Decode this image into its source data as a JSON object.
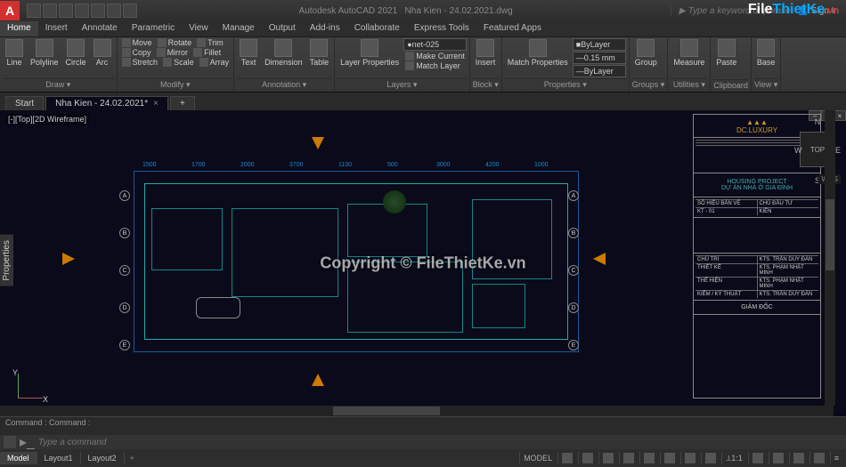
{
  "app": {
    "name": "Autodesk AutoCAD 2021",
    "file": "Nha Kien - 24.02.2021.dwg",
    "search_hint": "Type a keyword or phrase",
    "signin": "Sign In"
  },
  "watermark_site": {
    "a": "File",
    "b": "ThietKe",
    "c": ".vn"
  },
  "center_watermark": "Copyright © FileThietKe.vn",
  "tabs": [
    "Home",
    "Insert",
    "Annotate",
    "Parametric",
    "View",
    "Manage",
    "Output",
    "Add-ins",
    "Collaborate",
    "Express Tools",
    "Featured Apps"
  ],
  "active_tab": 0,
  "ribbon": {
    "draw": {
      "title": "Draw ▾",
      "items": [
        "Line",
        "Polyline",
        "Circle",
        "Arc"
      ]
    },
    "modify": {
      "title": "Modify ▾",
      "rows": [
        [
          "Move",
          "Rotate",
          "Trim"
        ],
        [
          "Copy",
          "Mirror",
          "Fillet"
        ],
        [
          "Stretch",
          "Scale",
          "Array"
        ]
      ]
    },
    "annot": {
      "title": "Annotation ▾",
      "items": [
        "Text",
        "Dimension",
        "Table"
      ]
    },
    "layers": {
      "title": "Layers ▾",
      "big": "Layer Properties",
      "combo": "net-025",
      "btns": [
        "Make Current",
        "Match Layer"
      ]
    },
    "block": {
      "title": "Block ▾",
      "items": [
        "Insert"
      ]
    },
    "props": {
      "title": "Properties ▾",
      "big": "Match Properties",
      "combo1": "ByLayer",
      "combo2": "0.15 mm",
      "combo3": "ByLayer"
    },
    "groups": {
      "title": "Groups ▾",
      "item": "Group"
    },
    "utils": {
      "title": "Utilities ▾",
      "item": "Measure"
    },
    "clip": {
      "title": "Clipboard",
      "item": "Paste"
    },
    "view": {
      "title": "View ▾",
      "item": "Base"
    }
  },
  "filetabs": [
    {
      "label": "Start",
      "active": false
    },
    {
      "label": "Nha Kien - 24.02.2021*",
      "active": true
    }
  ],
  "viewport_label": "[-][Top][2D Wireframe]",
  "properties_panel": "Properties",
  "navcube": {
    "face": "TOP",
    "n": "N",
    "s": "S",
    "e": "E",
    "w": "W",
    "wcs": "WCS"
  },
  "ucs": {
    "x": "X",
    "y": "Y"
  },
  "titleblock": {
    "brand": "DC.LUXURY",
    "project1": "HOUSING PROJECT",
    "project2": "DỰ ÁN NHÀ Ở GIA ĐÌNH",
    "code_label": "SỐ HIỆU BẢN VẼ",
    "code": "KT - 01",
    "owner_label": "CHỦ ĐẦU TƯ",
    "owner": "KIÊN",
    "rows": [
      [
        "CHỦ TRÌ",
        "KTS. TRẦN DUY ĐÀN"
      ],
      [
        "THIẾT KẾ",
        "KTS. PHẠM NHẬT MINH"
      ],
      [
        "THỂ HIỆN",
        "KTS. PHẠM NHẬT MINH"
      ],
      [
        "KIỂM / KỸ THUẬT",
        "KTS. TRẦN DUY ĐÀN"
      ]
    ],
    "director": "GIÁM ĐỐC"
  },
  "cmd": {
    "history": "Command :\nCommand :",
    "placeholder": "Type a command"
  },
  "layouts": [
    "Model",
    "Layout1",
    "Layout2"
  ],
  "active_layout": 0,
  "status": {
    "model": "MODEL",
    "scale": "1:1"
  },
  "grid_labels": [
    "A",
    "B",
    "C",
    "D",
    "E"
  ],
  "dim_top": [
    "1500",
    "1700",
    "2000",
    "3700",
    "1100",
    "500",
    "3000",
    "4200",
    "1000"
  ],
  "colors": {
    "drawing_bg": "#0a0a1a",
    "dim": "#1a8aca",
    "wall": "#22aaaa",
    "marker": "#cc7a00",
    "accent": "#d32f2f"
  }
}
